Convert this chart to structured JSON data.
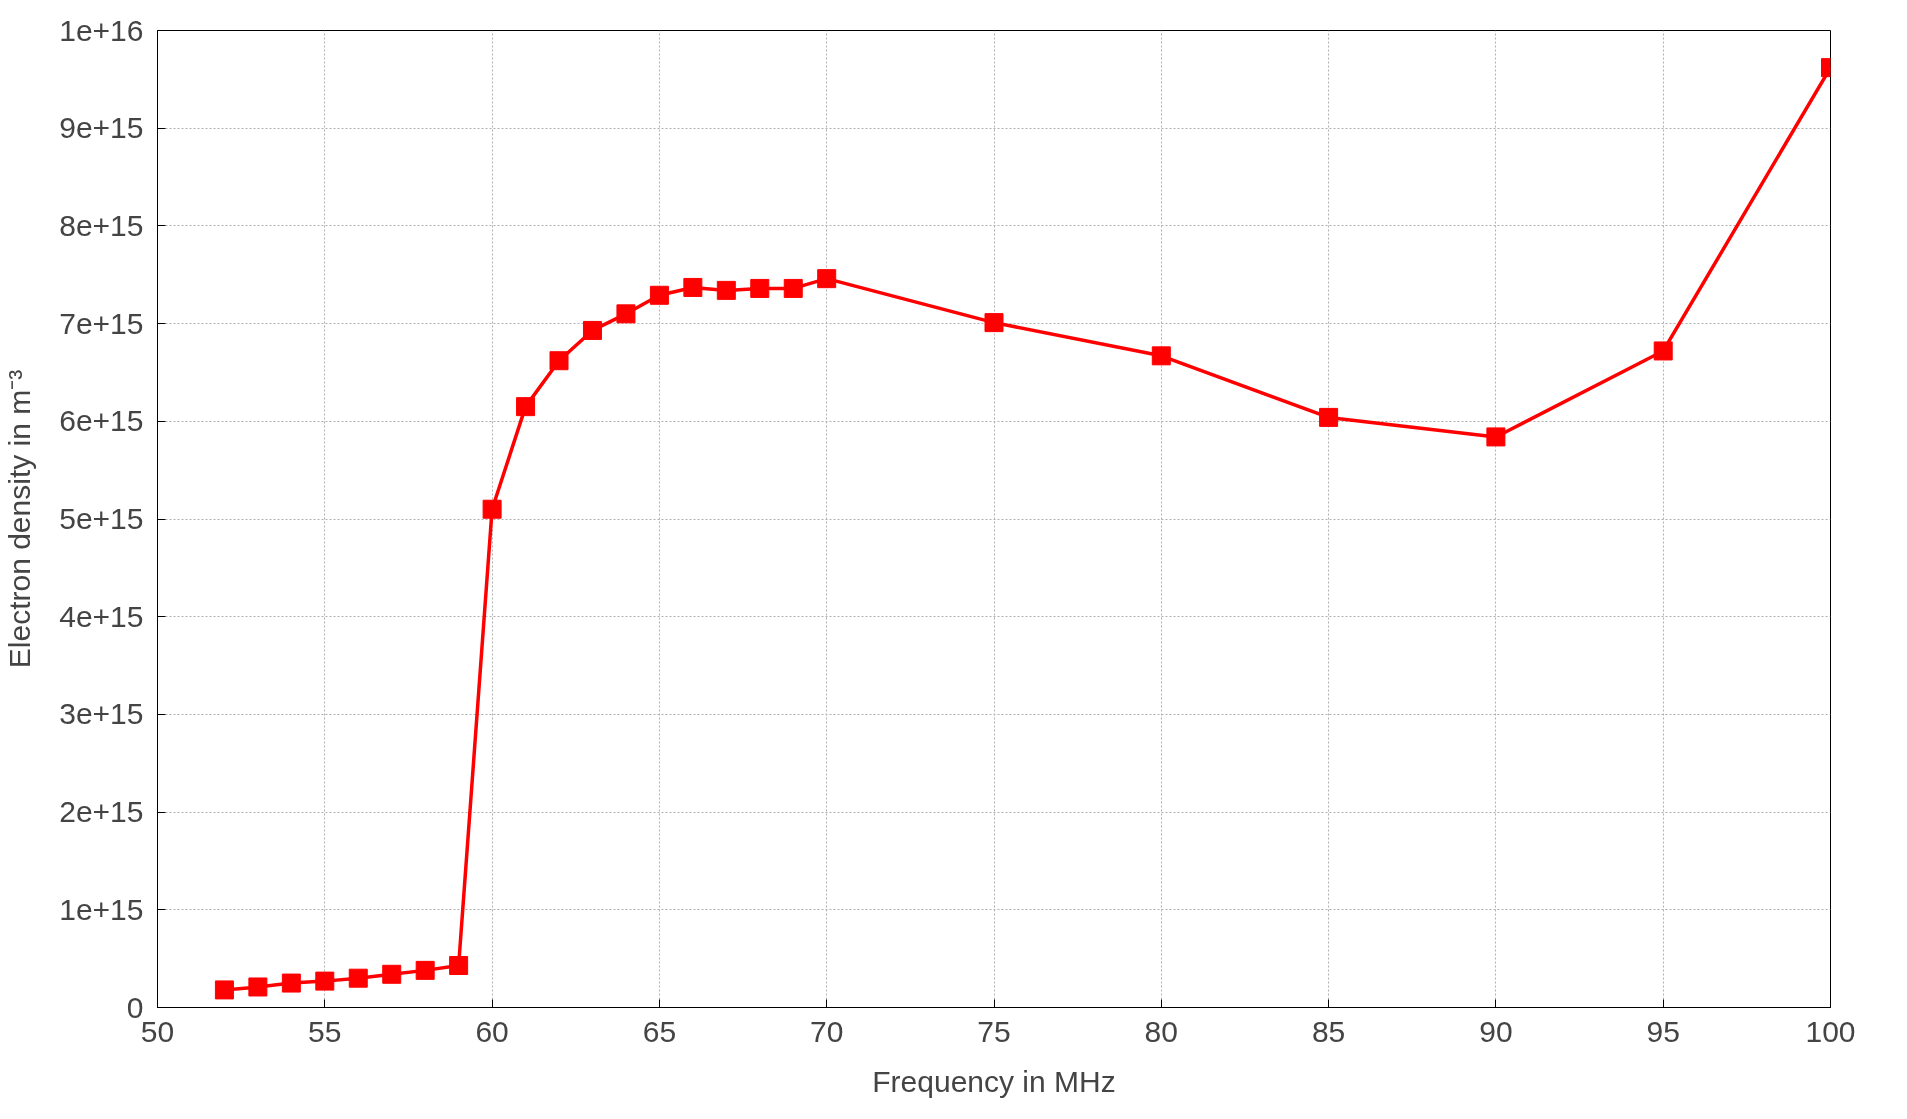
{
  "chart_data": {
    "type": "line",
    "xlabel": "Frequency in MHz",
    "ylabel": "Electron density in m⁻³",
    "x": [
      52,
      53,
      54,
      55,
      56,
      57,
      58,
      59,
      60,
      61,
      62,
      63,
      64,
      65,
      66,
      67,
      68,
      69,
      70,
      75,
      80,
      85,
      90,
      95,
      100
    ],
    "series": [
      {
        "color": "#ff0000",
        "values": [
          180000000000000.0,
          210000000000000.0,
          250000000000000.0,
          270000000000000.0,
          300000000000000.0,
          340000000000000.0,
          380000000000000.0,
          430000000000000.0,
          5100000000000000.0,
          6150000000000000.0,
          6620000000000000.0,
          6930000000000000.0,
          7100000000000000.0,
          7290000000000000.0,
          7370000000000000.0,
          7340000000000000.0,
          7360000000000000.0,
          7360000000000000.0,
          7460000000000000.0,
          7010000000000000.0,
          6670000000000000.0,
          6040000000000000.0,
          5840000000000000.0,
          6720000000000000.0,
          9620000000000000.0
        ]
      }
    ],
    "xlim": [
      50,
      100
    ],
    "xticks": [
      50,
      55,
      60,
      65,
      70,
      75,
      80,
      85,
      90,
      95,
      100
    ],
    "ylim": [
      0,
      1e+16
    ],
    "yticks": [
      0,
      {
        "value": 1000000000000000.0,
        "label": "1e+15"
      },
      {
        "value": 2000000000000000.0,
        "label": "2e+15"
      },
      {
        "value": 3000000000000000.0,
        "label": "3e+15"
      },
      {
        "value": 4000000000000000.0,
        "label": "4e+15"
      },
      {
        "value": 5000000000000000.0,
        "label": "5e+15"
      },
      {
        "value": 6000000000000000.0,
        "label": "6e+15"
      },
      {
        "value": 7000000000000000.0,
        "label": "7e+15"
      },
      {
        "value": 8000000000000000.0,
        "label": "8e+15"
      },
      {
        "value": 9000000000000000.0,
        "label": "9e+15"
      },
      {
        "value": 1e+16,
        "label": "1e+16"
      }
    ],
    "grid": true,
    "marker": "square",
    "line_style": "solid"
  }
}
